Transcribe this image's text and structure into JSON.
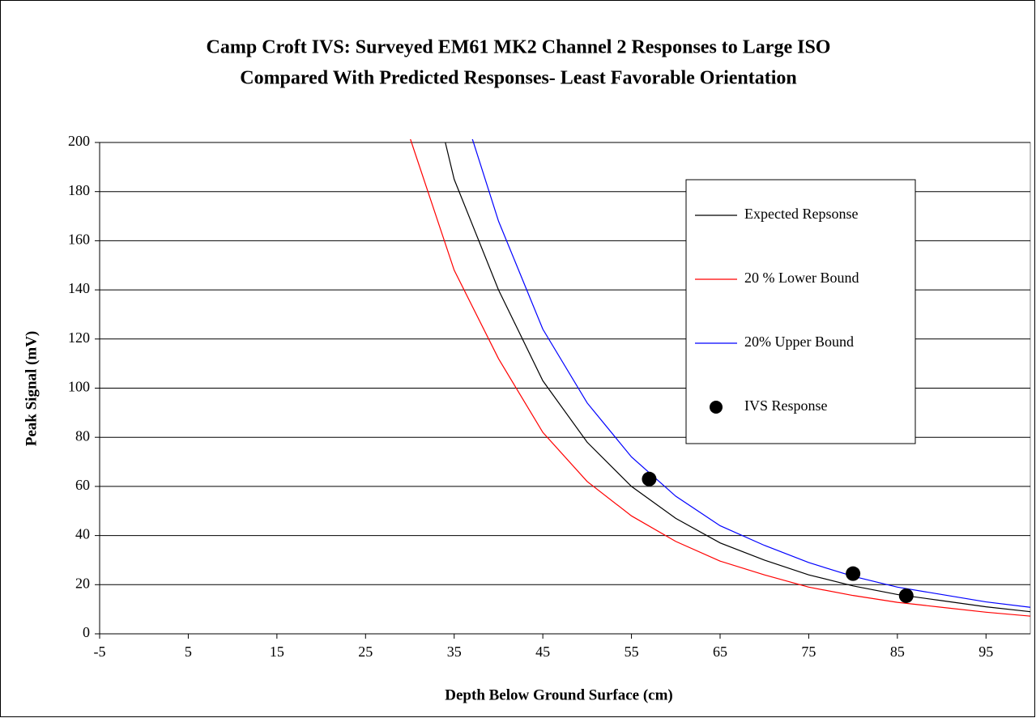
{
  "chart_data": {
    "type": "line",
    "title": [
      "Camp Croft IVS: Surveyed EM61 MK2 Channel 2 Responses to Large ISO",
      "Compared With Predicted Responses- Least Favorable Orientation"
    ],
    "x_label": "Depth Below Ground Surface (cm)",
    "y_label": "Peak Signal (mV)",
    "xlim": [
      -5,
      100
    ],
    "xticks": [
      -5,
      5,
      15,
      25,
      35,
      45,
      55,
      65,
      75,
      85,
      95
    ],
    "ylim": [
      0,
      200
    ],
    "yticks": [
      0,
      20,
      40,
      60,
      80,
      100,
      120,
      140,
      160,
      180,
      200
    ],
    "grid": true,
    "legend": "upper right",
    "series": [
      {
        "name": "Expected Repsonse",
        "color": "#000000",
        "type": "line",
        "x": [
          34,
          35,
          40,
          45,
          50,
          55,
          60,
          65,
          70,
          75,
          80,
          85,
          90,
          95,
          100
        ],
        "values": [
          200,
          185,
          140,
          103,
          78,
          60,
          47,
          37,
          30,
          24,
          19.5,
          16,
          13.5,
          11,
          9
        ]
      },
      {
        "name": "20 % Lower Bound",
        "color": "#ff0000",
        "type": "line",
        "x": [
          30,
          35,
          40,
          45,
          50,
          55,
          60,
          65,
          70,
          75,
          80,
          85,
          90,
          95,
          100
        ],
        "values": [
          202,
          148,
          112,
          82,
          62,
          48,
          37.6,
          29.6,
          24,
          19,
          15.6,
          12.8,
          10.8,
          8.8,
          7.2
        ]
      },
      {
        "name": "20% Upper Bound",
        "color": "#0000ff",
        "type": "line",
        "x": [
          37,
          40,
          45,
          50,
          55,
          60,
          65,
          70,
          75,
          80,
          85,
          90,
          95,
          100
        ],
        "values": [
          202,
          168,
          124,
          94,
          72,
          56,
          44,
          36,
          29,
          23.4,
          19,
          16,
          13,
          10.8
        ]
      },
      {
        "name": "IVS Response",
        "color": "#000000",
        "type": "scatter",
        "x": [
          57,
          80,
          86
        ],
        "values": [
          63,
          24.5,
          15.5
        ]
      }
    ]
  }
}
